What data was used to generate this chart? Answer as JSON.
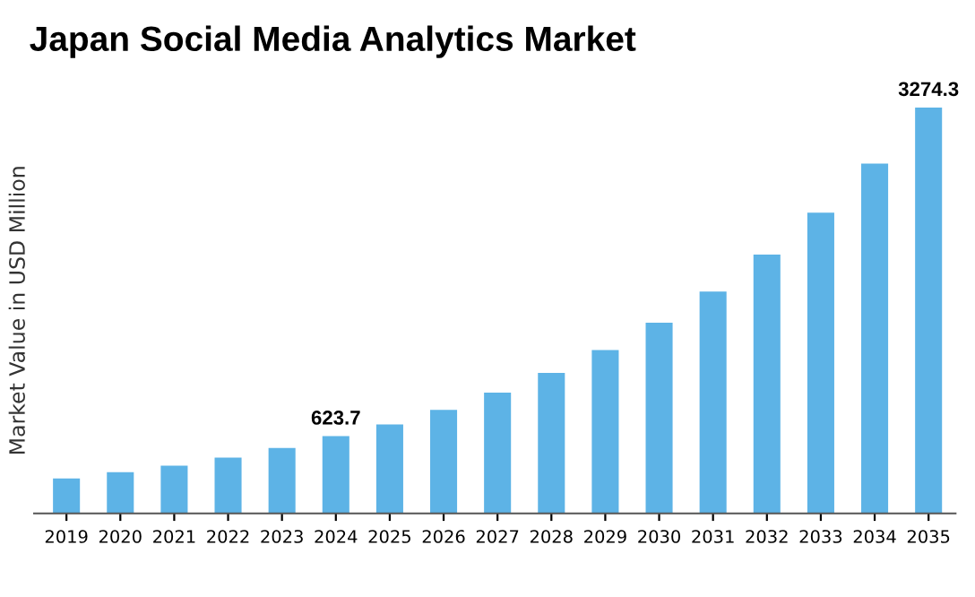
{
  "chart_data": {
    "type": "bar",
    "title": "Japan Social Media Analytics Market",
    "ylabel": "Market Value in USD Million",
    "categories": [
      "2019",
      "2020",
      "2021",
      "2022",
      "2023",
      "2024",
      "2025",
      "2026",
      "2027",
      "2028",
      "2029",
      "2030",
      "2031",
      "2032",
      "2033",
      "2034",
      "2035"
    ],
    "values": [
      282,
      333,
      385,
      451,
      528,
      623.7,
      718,
      836,
      975,
      1134,
      1318,
      1539,
      1790,
      2088,
      2426,
      2821,
      3274.3
    ],
    "value_labels": [
      null,
      null,
      null,
      null,
      null,
      "623.7",
      null,
      null,
      null,
      null,
      null,
      null,
      null,
      null,
      null,
      null,
      "3274.3"
    ],
    "color": "#5db3e6",
    "grid": false,
    "legend": false
  }
}
